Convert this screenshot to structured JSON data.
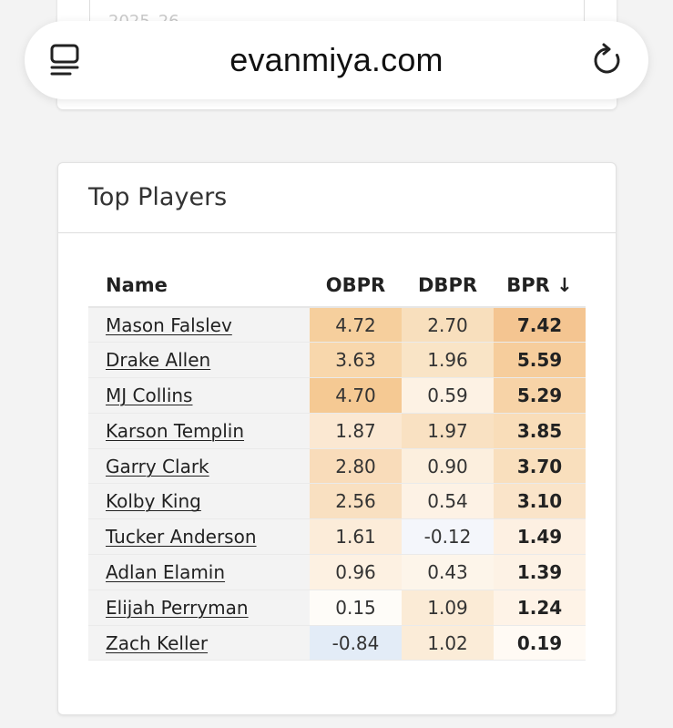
{
  "browser": {
    "url": "evanmiya.com"
  },
  "top_card": {
    "select_value": "2025–26"
  },
  "card": {
    "title": "Top Players"
  },
  "table": {
    "headers": {
      "name": "Name",
      "obpr": "OBPR",
      "dbpr": "DBPR",
      "bpr": "BPR ↓"
    },
    "rows": [
      {
        "name": "Mason Falslev",
        "obpr": "4.72",
        "dbpr": "2.70",
        "bpr": "7.42"
      },
      {
        "name": "Drake Allen",
        "obpr": "3.63",
        "dbpr": "1.96",
        "bpr": "5.59"
      },
      {
        "name": "MJ Collins",
        "obpr": "4.70",
        "dbpr": "0.59",
        "bpr": "5.29"
      },
      {
        "name": "Karson Templin",
        "obpr": "1.87",
        "dbpr": "1.97",
        "bpr": "3.85"
      },
      {
        "name": "Garry Clark",
        "obpr": "2.80",
        "dbpr": "0.90",
        "bpr": "3.70"
      },
      {
        "name": "Kolby King",
        "obpr": "2.56",
        "dbpr": "0.54",
        "bpr": "3.10"
      },
      {
        "name": "Tucker Anderson",
        "obpr": "1.61",
        "dbpr": "-0.12",
        "bpr": "1.49"
      },
      {
        "name": "Adlan Elamin",
        "obpr": "0.96",
        "dbpr": "0.43",
        "bpr": "1.39"
      },
      {
        "name": "Elijah Perryman",
        "obpr": "0.15",
        "dbpr": "1.09",
        "bpr": "1.24"
      },
      {
        "name": "Zach Keller",
        "obpr": "-0.84",
        "dbpr": "1.02",
        "bpr": "0.19"
      }
    ],
    "cell_colors": [
      [
        "#f6cf9d",
        "#f8dfbd",
        "#f4c591"
      ],
      [
        "#f8d7ac",
        "#f9e4c6",
        "#f6cd9c"
      ],
      [
        "#f5c993",
        "#fdf2e4",
        "#f7d3a7"
      ],
      [
        "#fbe8d2",
        "#f9e1c2",
        "#f9ddb9"
      ],
      [
        "#f9dcba",
        "#fcefde",
        "#f9dfbd"
      ],
      [
        "#f9e0c1",
        "#fdf2e5",
        "#fae4c9"
      ],
      [
        "#fcecd9",
        "#f4f6fb",
        "#fdf0e2"
      ],
      [
        "#fdf1e2",
        "#fdf5ea",
        "#fdf2e5"
      ],
      [
        "#fefcf8",
        "#fbebd6",
        "#fef3e7"
      ],
      [
        "#e3ecf7",
        "#fbecd8",
        "#fffaf4"
      ]
    ]
  }
}
